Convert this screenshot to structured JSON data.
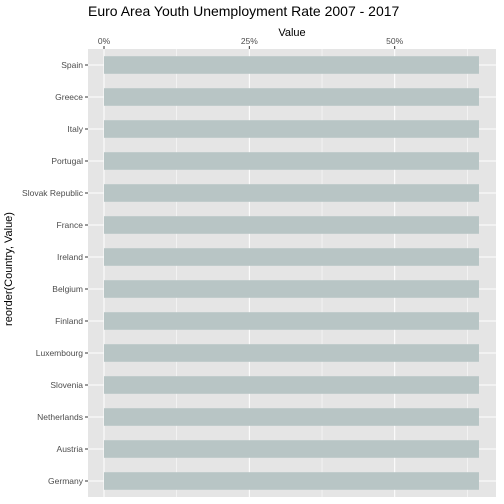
{
  "chart_data": {
    "type": "bar",
    "orientation": "horizontal",
    "title": "Euro Area Youth Unemployment Rate 2007 - 2017",
    "xlabel": "Value",
    "ylabel": "reorder(Country, Value)",
    "x_axis_position": "top",
    "xlim": [
      0,
      0.676
    ],
    "x_ticks": [
      0,
      0.25,
      0.5
    ],
    "x_tick_labels": [
      "0%",
      "25%",
      "50%"
    ],
    "grid": true,
    "categories": [
      "Spain",
      "Greece",
      "Italy",
      "Portugal",
      "Slovak Republic",
      "France",
      "Ireland",
      "Belgium",
      "Finland",
      "Luxembourg",
      "Slovenia",
      "Netherlands",
      "Austria",
      "Germany"
    ],
    "values": [
      0.645,
      0.645,
      0.645,
      0.645,
      0.645,
      0.645,
      0.645,
      0.645,
      0.645,
      0.645,
      0.645,
      0.645,
      0.645,
      0.645
    ],
    "bar_color": "#b8c5c5",
    "panel_color": "#e5e5e5"
  }
}
